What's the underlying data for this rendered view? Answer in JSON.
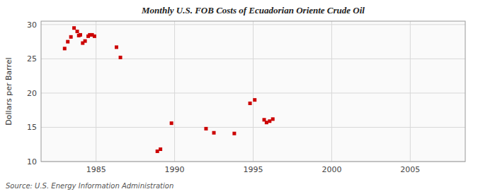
{
  "chart_data": {
    "type": "scatter",
    "title": "Monthly U.S. FOB Costs of Ecuadorian Oriente Crude Oil",
    "y_label": "Dollars per Barrel",
    "annotations": [
      "Source: U.S. Energy Information Administration"
    ],
    "color": "#cc0000",
    "marker": "square",
    "grid": true,
    "xlim": [
      1981.5,
      2008.5
    ],
    "ylim": [
      10,
      30.5
    ],
    "xticks": [
      1985,
      1990,
      1995,
      2000,
      2005
    ],
    "yticks": [
      10,
      15,
      20,
      25,
      30
    ],
    "x": [
      1983.0,
      1983.2,
      1983.4,
      1983.6,
      1983.8,
      1983.9,
      1984.0,
      1984.15,
      1984.3,
      1984.5,
      1984.6,
      1984.75,
      1984.9,
      1986.3,
      1986.55,
      1988.9,
      1989.1,
      1989.8,
      1992.0,
      1992.5,
      1993.8,
      1994.8,
      1995.1,
      1995.7,
      1995.85,
      1996.05,
      1996.25
    ],
    "values": [
      26.5,
      27.5,
      28.2,
      29.5,
      29.0,
      28.4,
      28.5,
      27.3,
      27.6,
      28.3,
      28.5,
      28.5,
      28.3,
      26.7,
      25.2,
      11.5,
      11.8,
      15.6,
      14.8,
      14.2,
      14.1,
      18.5,
      19.0,
      16.1,
      15.7,
      15.9,
      16.2
    ]
  }
}
